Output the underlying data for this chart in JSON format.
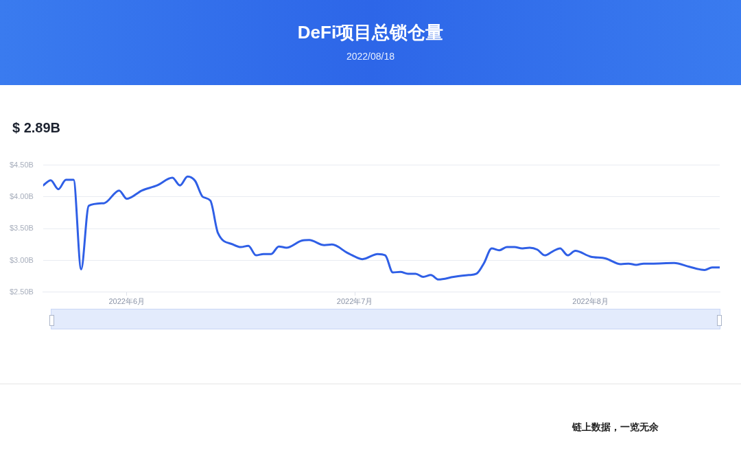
{
  "chart_data": {
    "type": "line",
    "title": "DeFi项目总锁仓量",
    "subtitle": "2022/08/18",
    "annotations": [
      "$ 2.89B",
      "链上数据，一览无余"
    ],
    "x": [
      "2022-05-21",
      "2022-05-22",
      "2022-05-23",
      "2022-05-24",
      "2022-05-25",
      "2022-05-26",
      "2022-05-27",
      "2022-05-29",
      "2022-05-31",
      "2022-06-01",
      "2022-06-03",
      "2022-06-05",
      "2022-06-07",
      "2022-06-08",
      "2022-06-09",
      "2022-06-10",
      "2022-06-11",
      "2022-06-12",
      "2022-06-13",
      "2022-06-15",
      "2022-06-16",
      "2022-06-17",
      "2022-06-18",
      "2022-06-19",
      "2022-06-20",
      "2022-06-21",
      "2022-06-22",
      "2022-06-24",
      "2022-06-25",
      "2022-06-27",
      "2022-06-28",
      "2022-06-30",
      "2022-07-01",
      "2022-07-02",
      "2022-07-04",
      "2022-07-05",
      "2022-07-06",
      "2022-07-07",
      "2022-07-08",
      "2022-07-09",
      "2022-07-10",
      "2022-07-11",
      "2022-07-12",
      "2022-07-14",
      "2022-07-16",
      "2022-07-17",
      "2022-07-18",
      "2022-07-19",
      "2022-07-20",
      "2022-07-21",
      "2022-07-22",
      "2022-07-23",
      "2022-07-24",
      "2022-07-25",
      "2022-07-26",
      "2022-07-27",
      "2022-07-28",
      "2022-07-29",
      "2022-07-30",
      "2022-08-01",
      "2022-08-03",
      "2022-08-05",
      "2022-08-06",
      "2022-08-07",
      "2022-08-08",
      "2022-08-09",
      "2022-08-12",
      "2022-08-14",
      "2022-08-16",
      "2022-08-17",
      "2022-08-18"
    ],
    "series": [
      {
        "color": "#2f5fe6",
        "values": [
          4.18,
          4.26,
          4.12,
          4.27,
          4.27,
          2.86,
          3.86,
          3.9,
          4.1,
          3.97,
          4.1,
          4.18,
          4.3,
          4.18,
          4.32,
          4.25,
          4.0,
          3.94,
          3.43,
          3.25,
          3.21,
          3.23,
          3.08,
          3.1,
          3.1,
          3.22,
          3.2,
          3.31,
          3.32,
          3.24,
          3.25,
          3.12,
          3.06,
          3.02,
          3.1,
          3.08,
          2.81,
          2.82,
          2.79,
          2.79,
          2.74,
          2.77,
          2.7,
          2.74,
          2.77,
          2.79,
          2.96,
          3.19,
          3.16,
          3.21,
          3.21,
          3.19,
          3.2,
          3.17,
          3.08,
          3.14,
          3.19,
          3.08,
          3.15,
          3.06,
          3.03,
          2.94,
          2.95,
          2.93,
          2.95,
          2.95,
          2.96,
          2.9,
          2.85,
          2.89,
          2.89
        ]
      }
    ],
    "xlim": [
      "2022-05-21",
      "2022-08-18"
    ],
    "xticks": [
      {
        "value": "2022-06-01",
        "label": "2022年6月"
      },
      {
        "value": "2022-07-01",
        "label": "2022年7月"
      },
      {
        "value": "2022-08-01",
        "label": "2022年8月"
      }
    ],
    "ylim": [
      2.5,
      4.5
    ],
    "yticks": [
      {
        "value": 2.5,
        "label": "$2.50B"
      },
      {
        "value": 3,
        "label": "$3.00B"
      },
      {
        "value": 3.5,
        "label": "$3.50B"
      },
      {
        "value": 4,
        "label": "$4.00B"
      },
      {
        "value": 4.5,
        "label": "$4.50B"
      }
    ],
    "grid": "y",
    "legend": false,
    "marker": "none",
    "line_style": "solid"
  }
}
